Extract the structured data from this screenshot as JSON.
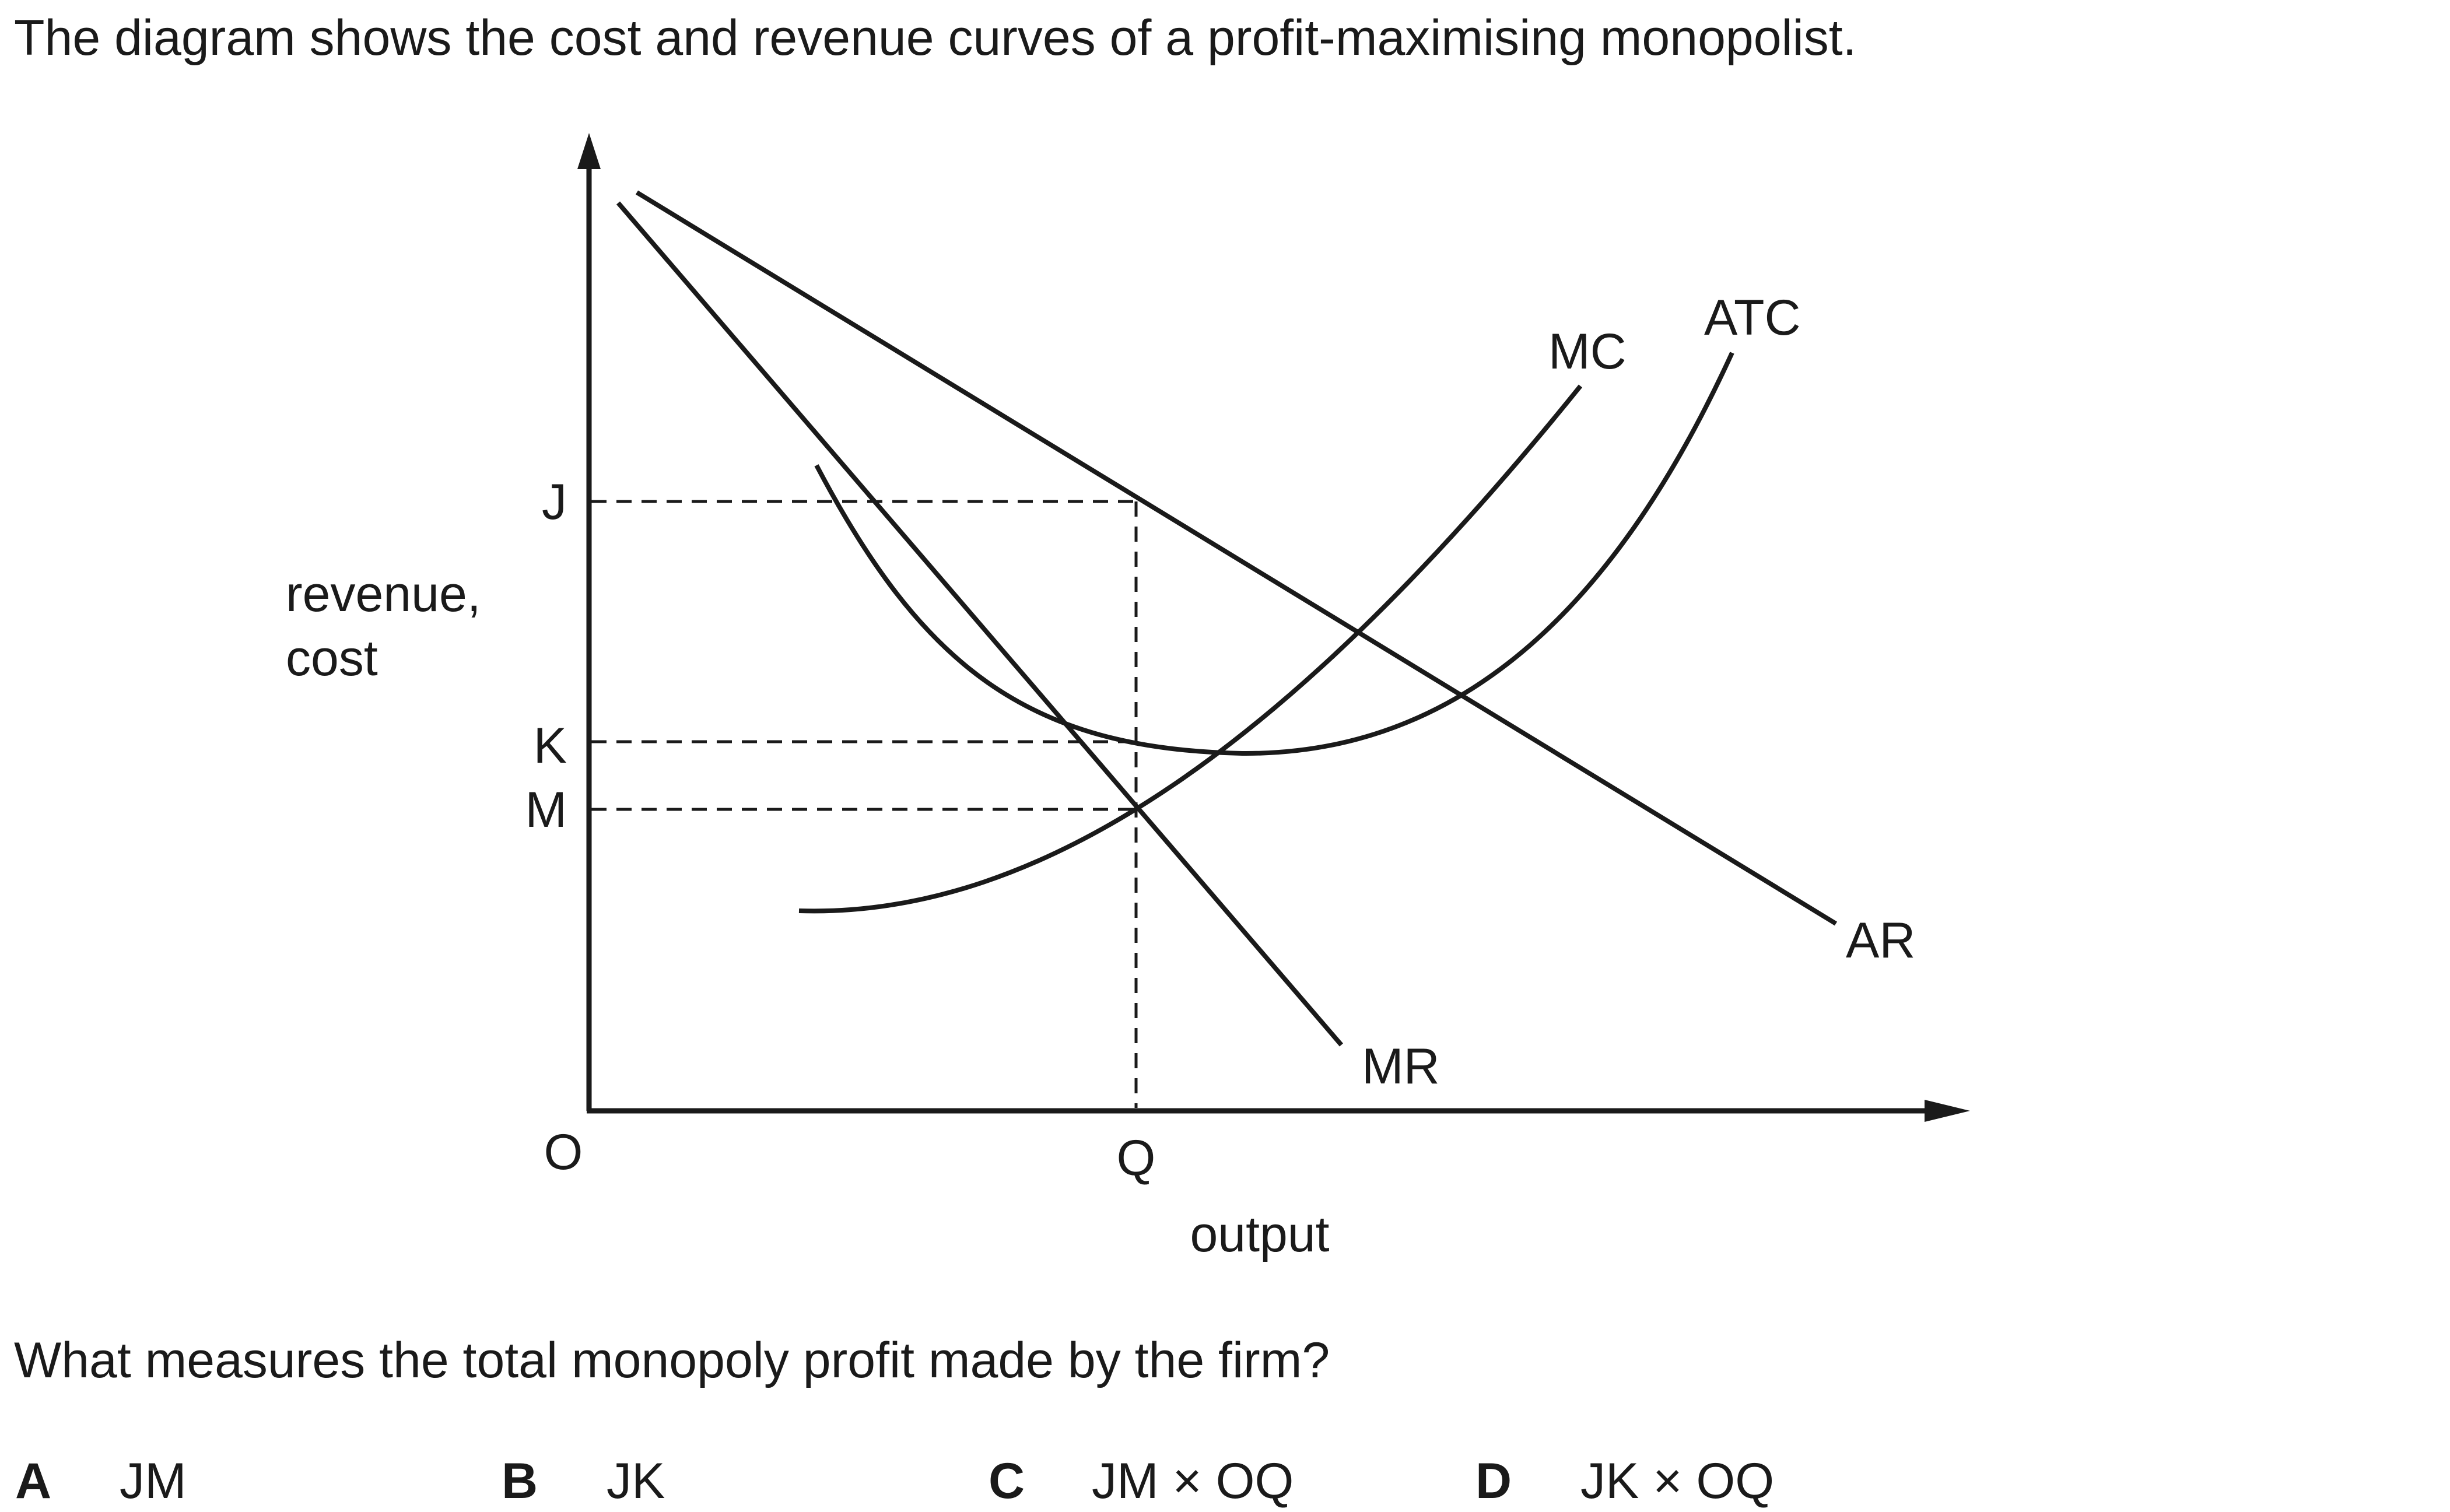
{
  "question": {
    "intro": "The diagram shows the cost and revenue curves of a profit-maximising monopolist.",
    "prompt": "What measures the total monopoly profit made by the firm?",
    "options": [
      {
        "letter": "A",
        "text": "JM"
      },
      {
        "letter": "B",
        "text": "JK"
      },
      {
        "letter": "C",
        "text": "JM × OQ"
      },
      {
        "letter": "D",
        "text": "JK × OQ"
      }
    ]
  },
  "diagram": {
    "y_axis_label_line1": "revenue,",
    "y_axis_label_line2": "cost",
    "x_axis_label": "output",
    "origin_label": "O",
    "q_label": "Q",
    "j_label": "J",
    "k_label": "K",
    "m_label": "M",
    "curves": {
      "mc": "MC",
      "atc": "ATC",
      "ar": "AR",
      "mr": "MR"
    },
    "line_color": "#1a1a1a"
  }
}
